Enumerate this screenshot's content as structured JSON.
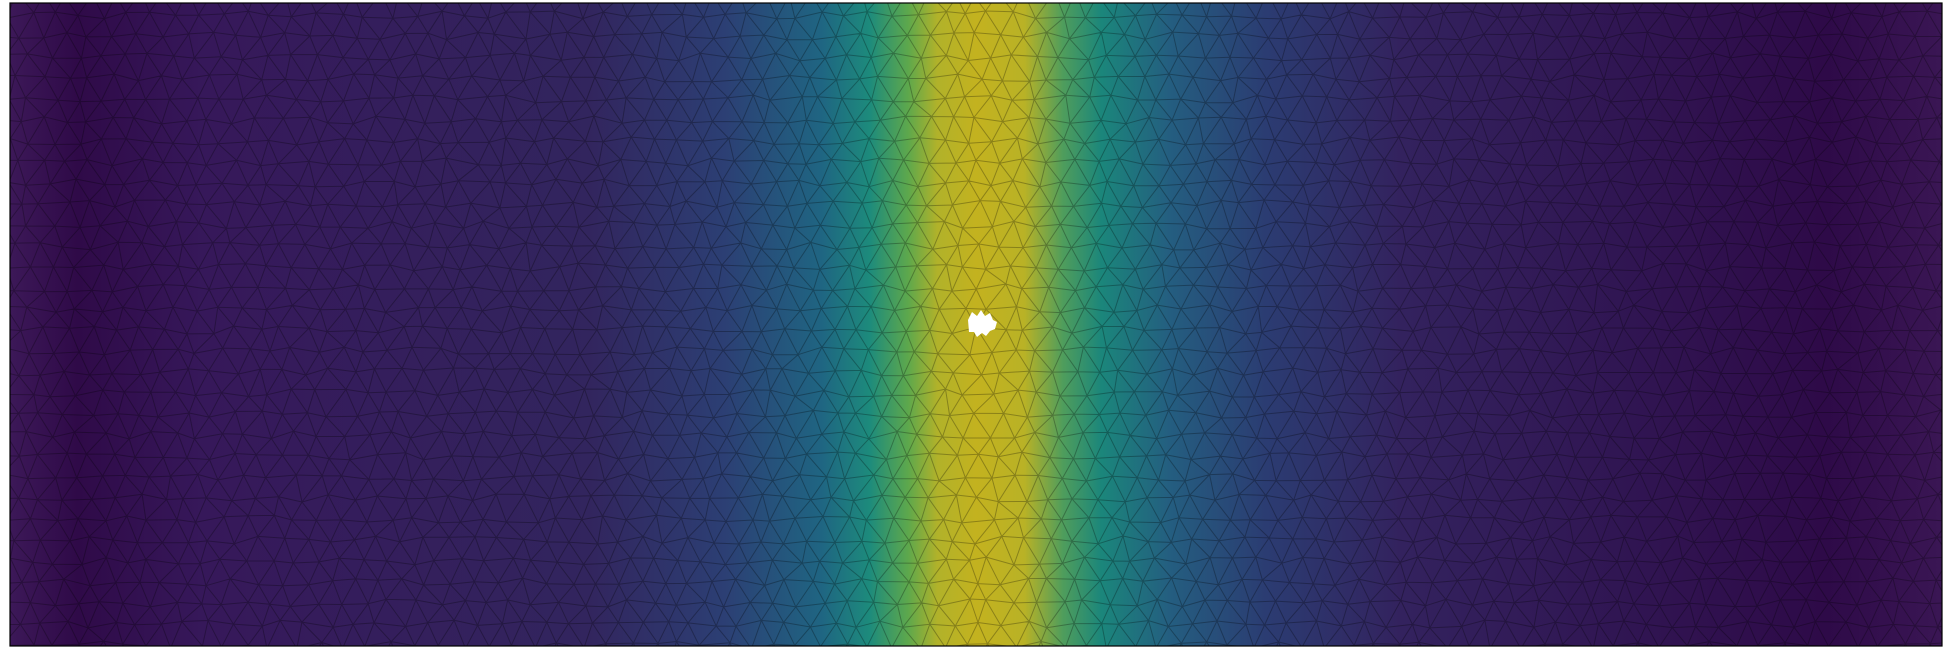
{
  "field": {
    "colors": [
      {
        "offset": 0,
        "color": "#3c1858"
      },
      {
        "offset": 0.035,
        "color": "#2f0a48"
      },
      {
        "offset": 0.1,
        "color": "#36185a"
      },
      {
        "offset": 0.3,
        "color": "#32255e"
      },
      {
        "offset": 0.37,
        "color": "#2c3f74"
      },
      {
        "offset": 0.42,
        "color": "#1f6582"
      },
      {
        "offset": 0.445,
        "color": "#1d8b7c"
      },
      {
        "offset": 0.465,
        "color": "#5ea84c"
      },
      {
        "offset": 0.48,
        "color": "#b1b22a"
      },
      {
        "offset": 0.5,
        "color": "#c3b21f"
      },
      {
        "offset": 0.525,
        "color": "#b9b226"
      },
      {
        "offset": 0.545,
        "color": "#4f9d5c"
      },
      {
        "offset": 0.565,
        "color": "#1b867b"
      },
      {
        "offset": 0.6,
        "color": "#245e80"
      },
      {
        "offset": 0.65,
        "color": "#2b3c72"
      },
      {
        "offset": 0.72,
        "color": "#33225e"
      },
      {
        "offset": 0.94,
        "color": "#2e0a48"
      },
      {
        "offset": 1,
        "color": "#3a1654"
      }
    ]
  }
}
